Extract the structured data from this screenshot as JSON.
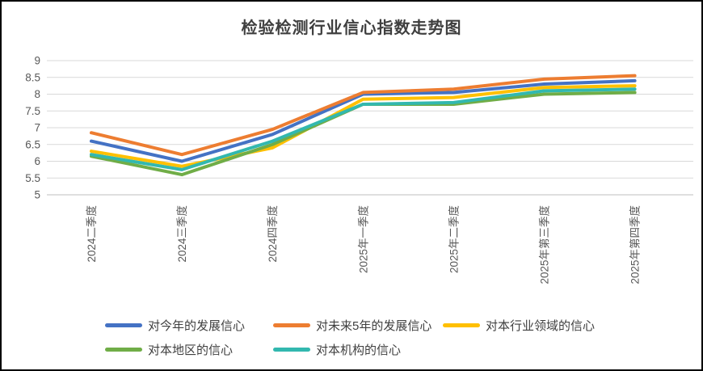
{
  "chart_data": {
    "type": "line",
    "title": "检验检测行业信心指数走势图",
    "categories": [
      "2024二季度",
      "2024三季度",
      "2024四季度",
      "2025年一季度",
      "2025年二季度",
      "2025年第三季度",
      "2025年第四季度"
    ],
    "series": [
      {
        "name": "对今年的发展信心",
        "color": "#4472C4",
        "values": [
          6.6,
          6.0,
          6.8,
          8.0,
          8.05,
          8.3,
          8.4
        ]
      },
      {
        "name": "对未来5年的发展信心",
        "color": "#ED7D31",
        "values": [
          6.85,
          6.2,
          6.95,
          8.05,
          8.15,
          8.45,
          8.55
        ]
      },
      {
        "name": "对本行业领域的信心",
        "color": "#FFC000",
        "values": [
          6.3,
          5.85,
          6.4,
          7.85,
          7.9,
          8.2,
          8.25
        ]
      },
      {
        "name": "对本地区的信心",
        "color": "#70AD47",
        "values": [
          6.15,
          5.6,
          6.5,
          7.7,
          7.7,
          8.0,
          8.05
        ]
      },
      {
        "name": "对本机构的信心",
        "color": "#32B8AF",
        "values": [
          6.2,
          5.75,
          6.6,
          7.7,
          7.75,
          8.1,
          8.15
        ]
      }
    ],
    "ylim": [
      5,
      9
    ],
    "ytick_step": 0.5,
    "yticks": [
      "9",
      "8.5",
      "8",
      "7.5",
      "7",
      "6.5",
      "6",
      "5.5",
      "5"
    ],
    "grid": true,
    "legend_position": "bottom"
  },
  "style_colors": {
    "grid": "#D9D9D9",
    "axis_line": "#BFBFBF",
    "tick_label": "#595959",
    "legend_text": "#404040",
    "title_text": "#3F3F3F",
    "border": "#000000",
    "background": "#FFFFFF"
  }
}
